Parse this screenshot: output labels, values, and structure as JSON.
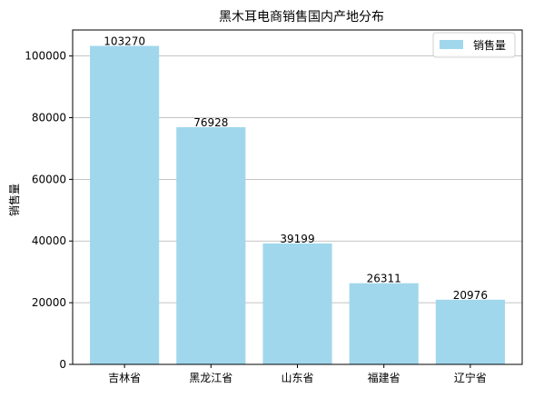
{
  "chart_data": {
    "type": "bar",
    "title": "黑木耳电商销售国内产地分布",
    "xlabel": "",
    "ylabel": "销售量",
    "categories": [
      "吉林省",
      "黑龙江省",
      "山东省",
      "福建省",
      "辽宁省"
    ],
    "series": [
      {
        "name": "销售量",
        "values": [
          103270,
          76928,
          39199,
          26311,
          20976
        ],
        "color": "#a1d7ec"
      }
    ],
    "ylim": [
      0,
      108433
    ],
    "yticks": [
      0,
      20000,
      40000,
      60000,
      80000,
      100000
    ],
    "grid": "y-axis horizontal lines",
    "legend_position": "top-right",
    "data_labels": true,
    "grid_color": "#b0b0b0"
  }
}
